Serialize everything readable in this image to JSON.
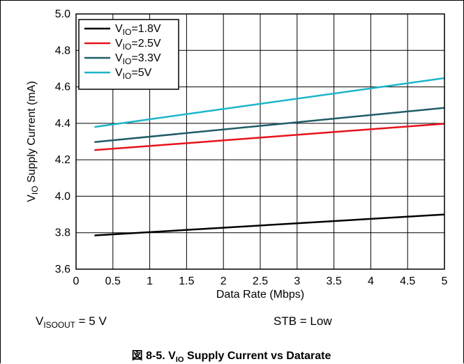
{
  "chart_data": {
    "type": "line",
    "xlabel": "Data Rate (Mbps)",
    "ylabel": {
      "prefix": "V",
      "sub": "IO",
      "suffix": " Supply Current (mA)"
    },
    "xlim": [
      0,
      5
    ],
    "ylim": [
      3.6,
      5.0
    ],
    "xticks": [
      "0",
      "0.5",
      "1",
      "1.5",
      "2",
      "2.5",
      "3",
      "3.5",
      "4",
      "4.5",
      "5"
    ],
    "yticks": [
      "3.6",
      "3.8",
      "4.0",
      "4.2",
      "4.4",
      "4.6",
      "4.8",
      "5.0"
    ],
    "grid": true,
    "legend_position": "top-left",
    "series": [
      {
        "name": {
          "prefix": "V",
          "sub": "IO",
          "suffix": "=1.8V"
        },
        "color": "#000000",
        "x": [
          0.25,
          5
        ],
        "y": [
          3.785,
          3.9
        ]
      },
      {
        "name": {
          "prefix": "V",
          "sub": "IO",
          "suffix": "=2.5V"
        },
        "color": "#e8121b",
        "x": [
          0.25,
          5
        ],
        "y": [
          4.253,
          4.398
        ]
      },
      {
        "name": {
          "prefix": "V",
          "sub": "IO",
          "suffix": "=3.3V"
        },
        "color": "#1f5c68",
        "x": [
          0.25,
          5
        ],
        "y": [
          4.297,
          4.485
        ]
      },
      {
        "name": {
          "prefix": "V",
          "sub": "IO",
          "suffix": "=5V"
        },
        "color": "#1cb5c9",
        "x": [
          0.25,
          5
        ],
        "y": [
          4.38,
          4.648
        ]
      }
    ]
  },
  "conditions": {
    "left": {
      "prefix": "V",
      "sub": "ISOOUT",
      "suffix": " = 5 V"
    },
    "right": "STB = Low"
  },
  "caption": {
    "prefix": "図 8-5. V",
    "sub": "IO",
    "suffix": " Supply Current vs Datarate"
  }
}
